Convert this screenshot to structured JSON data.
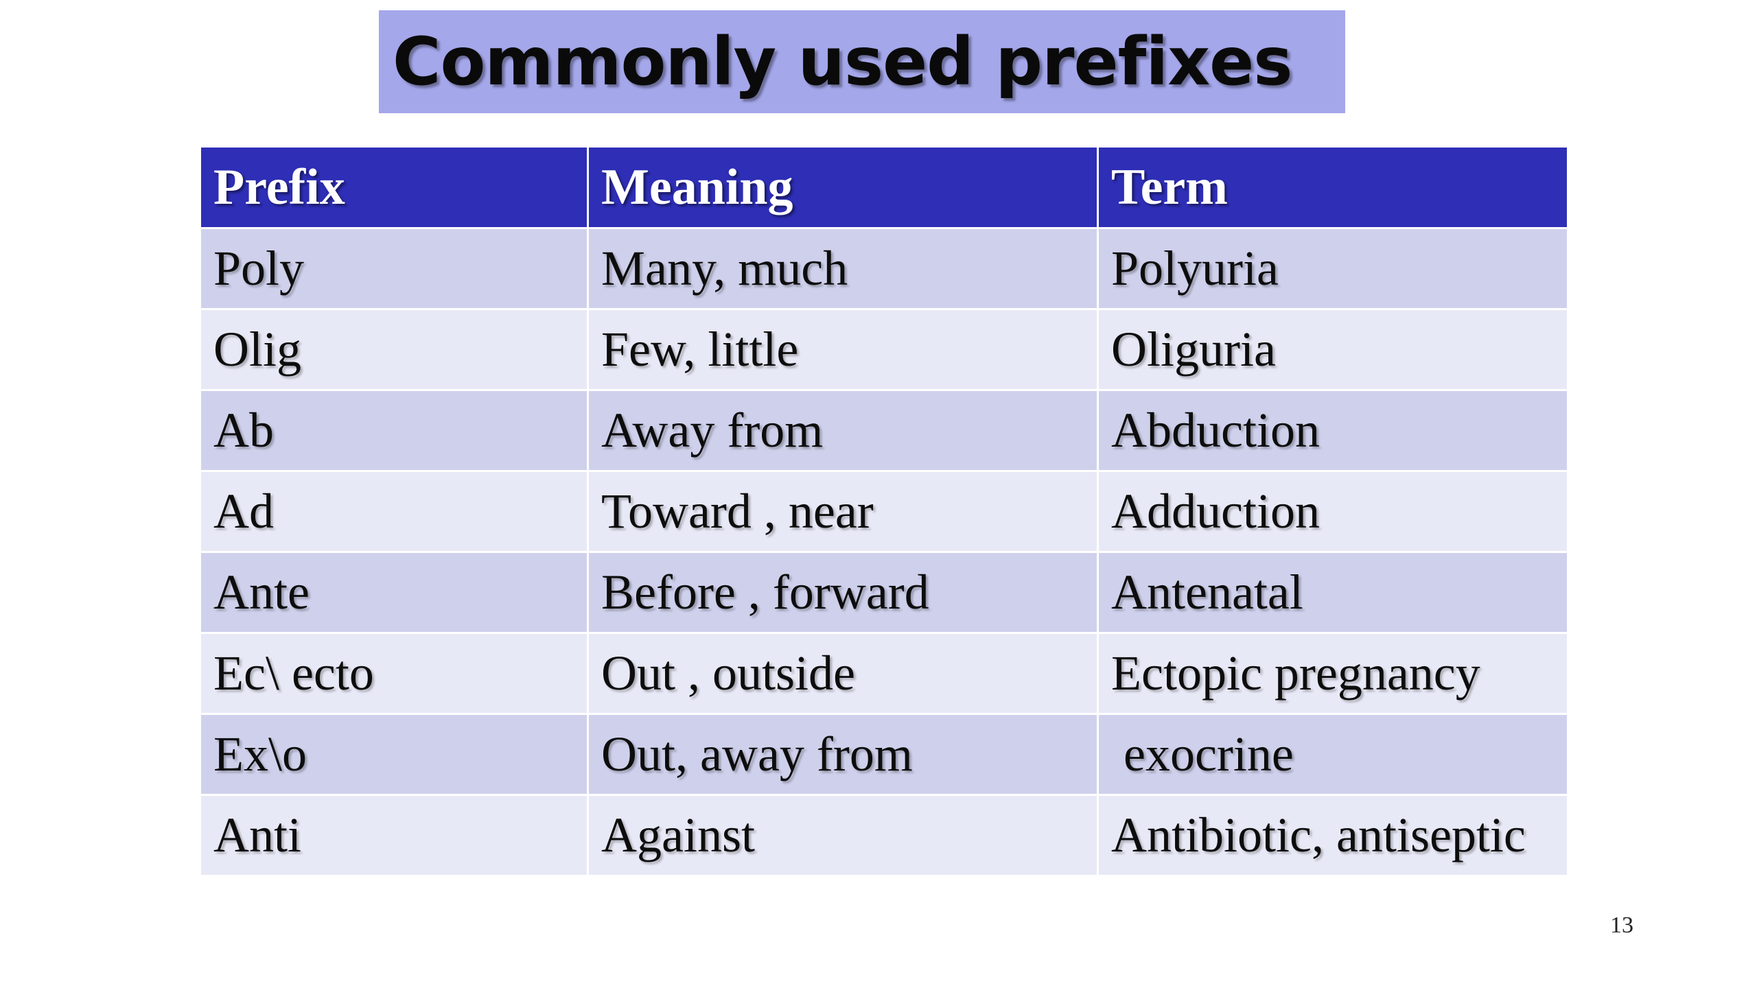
{
  "title": "Commonly used prefixes",
  "table": {
    "headers": [
      "Prefix",
      "Meaning",
      "Term"
    ],
    "rows": [
      [
        "Poly",
        "Many, much",
        "Polyuria"
      ],
      [
        "Olig",
        "Few, little",
        "Oliguria"
      ],
      [
        "Ab",
        "Away from",
        "Abduction"
      ],
      [
        "Ad",
        "Toward , near",
        "Adduction"
      ],
      [
        "Ante",
        "Before , forward",
        "Antenatal"
      ],
      [
        "Ec\\ ecto",
        "Out , outside",
        "Ectopic pregnancy"
      ],
      [
        "Ex\\o",
        "Out, away from",
        " exocrine"
      ],
      [
        "Anti",
        "Against",
        "Antibiotic, antiseptic"
      ]
    ]
  },
  "slide_number": "13",
  "colors": {
    "title_background": "#a4a7ea",
    "header_background": "#2e2eb6",
    "row_odd_background": "#cfd1ec",
    "row_even_background": "#e8e9f6"
  }
}
